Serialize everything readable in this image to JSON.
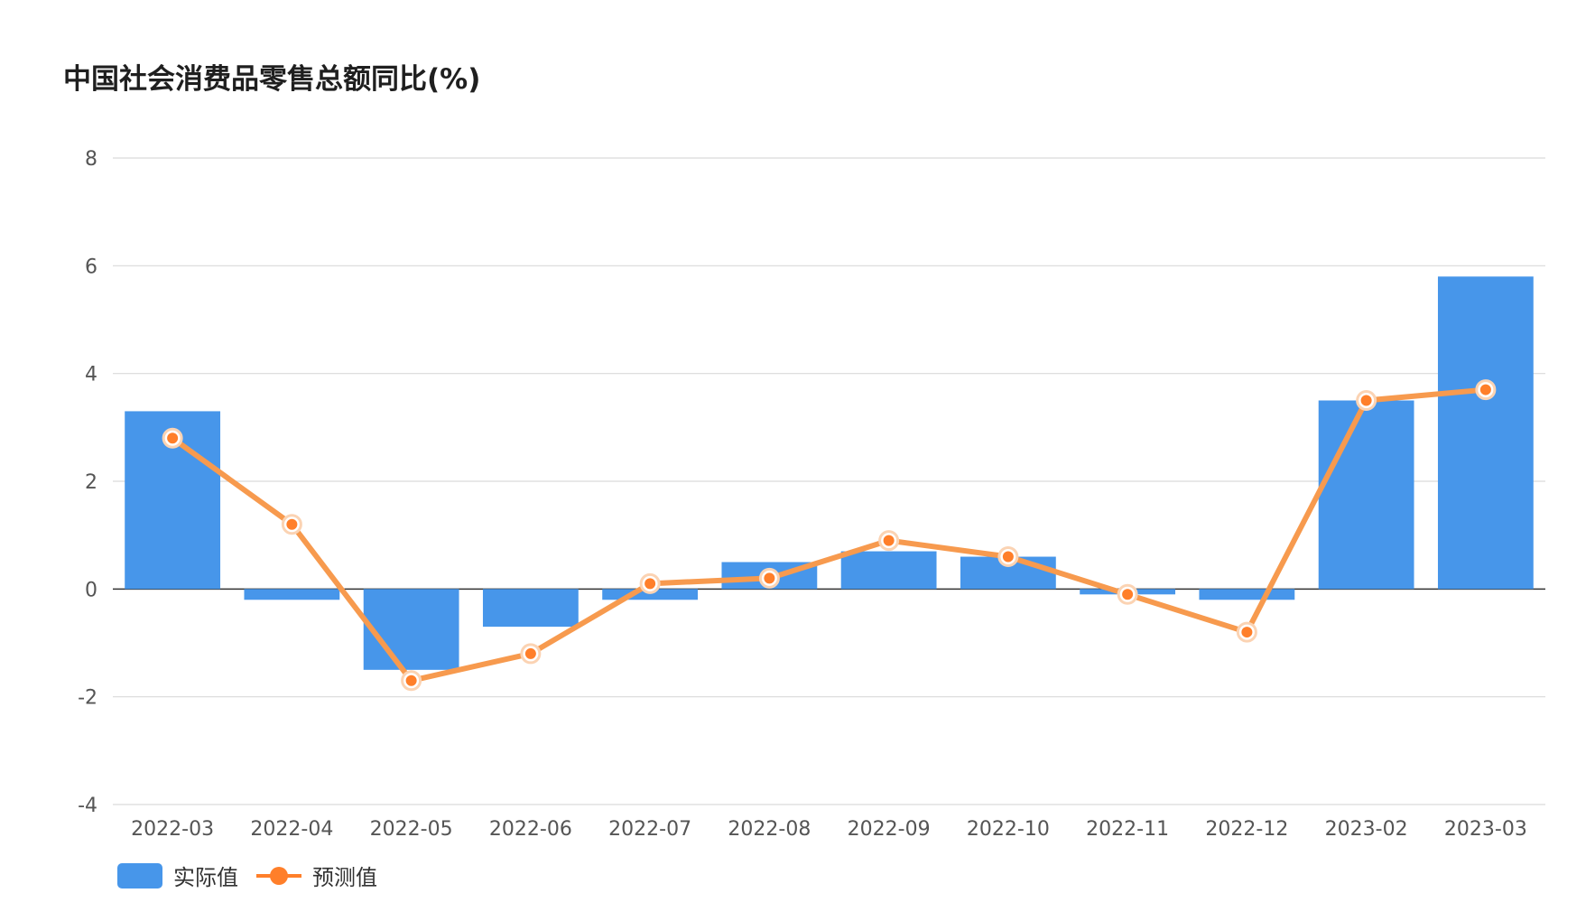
{
  "chart_data": {
    "type": "bar",
    "title": "中国社会消费品零售总额同比(%)",
    "xlabel": "",
    "ylabel": "",
    "categories": [
      "2022-03",
      "2022-04",
      "2022-05",
      "2022-06",
      "2022-07",
      "2022-08",
      "2022-09",
      "2022-10",
      "2022-11",
      "2022-12",
      "2023-02",
      "2023-03"
    ],
    "ylim": [
      -4,
      8
    ],
    "yticks": [
      8,
      6,
      4,
      2,
      0,
      -2,
      -4
    ],
    "grid": true,
    "legend_position": "bottom-left",
    "series": [
      {
        "name": "实际值",
        "type": "bar",
        "color": "#4796EA",
        "values": [
          3.3,
          -0.2,
          -1.5,
          -0.7,
          -0.2,
          0.5,
          0.7,
          0.6,
          -0.1,
          -0.2,
          3.5,
          5.8
        ]
      },
      {
        "name": "预测值",
        "type": "line",
        "color": "#FF7F2A",
        "values": [
          2.8,
          1.2,
          -1.7,
          -1.2,
          0.1,
          0.2,
          0.9,
          0.6,
          -0.1,
          -0.8,
          3.5,
          3.7
        ]
      }
    ]
  }
}
